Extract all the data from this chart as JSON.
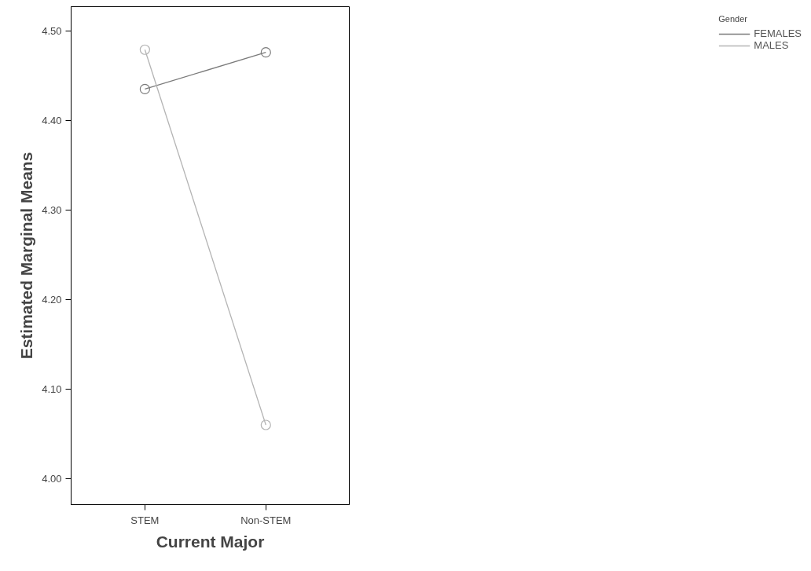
{
  "chart_data": {
    "type": "line",
    "xlabel": "Current Major",
    "ylabel": "Estimated Marginal Means",
    "legend_title": "Gender",
    "categories": [
      "STEM",
      "Non-STEM"
    ],
    "series": [
      {
        "name": "FEMALES",
        "color": "#7a7a7a",
        "values": [
          4.435,
          4.476
        ]
      },
      {
        "name": "MALES",
        "color": "#b4b4b4",
        "values": [
          4.479,
          4.06
        ]
      }
    ],
    "ylim": [
      3.971,
      4.527
    ],
    "yticks": [
      {
        "value": 4.0,
        "label": "4.00"
      },
      {
        "value": 4.1,
        "label": "4.10"
      },
      {
        "value": 4.2,
        "label": "4.20"
      },
      {
        "value": 4.3,
        "label": "4.30"
      },
      {
        "value": 4.4,
        "label": "4.40"
      },
      {
        "value": 4.5,
        "label": "4.50"
      }
    ],
    "grid": false,
    "legend": "right",
    "marker": "circle",
    "line_style": "solid"
  }
}
